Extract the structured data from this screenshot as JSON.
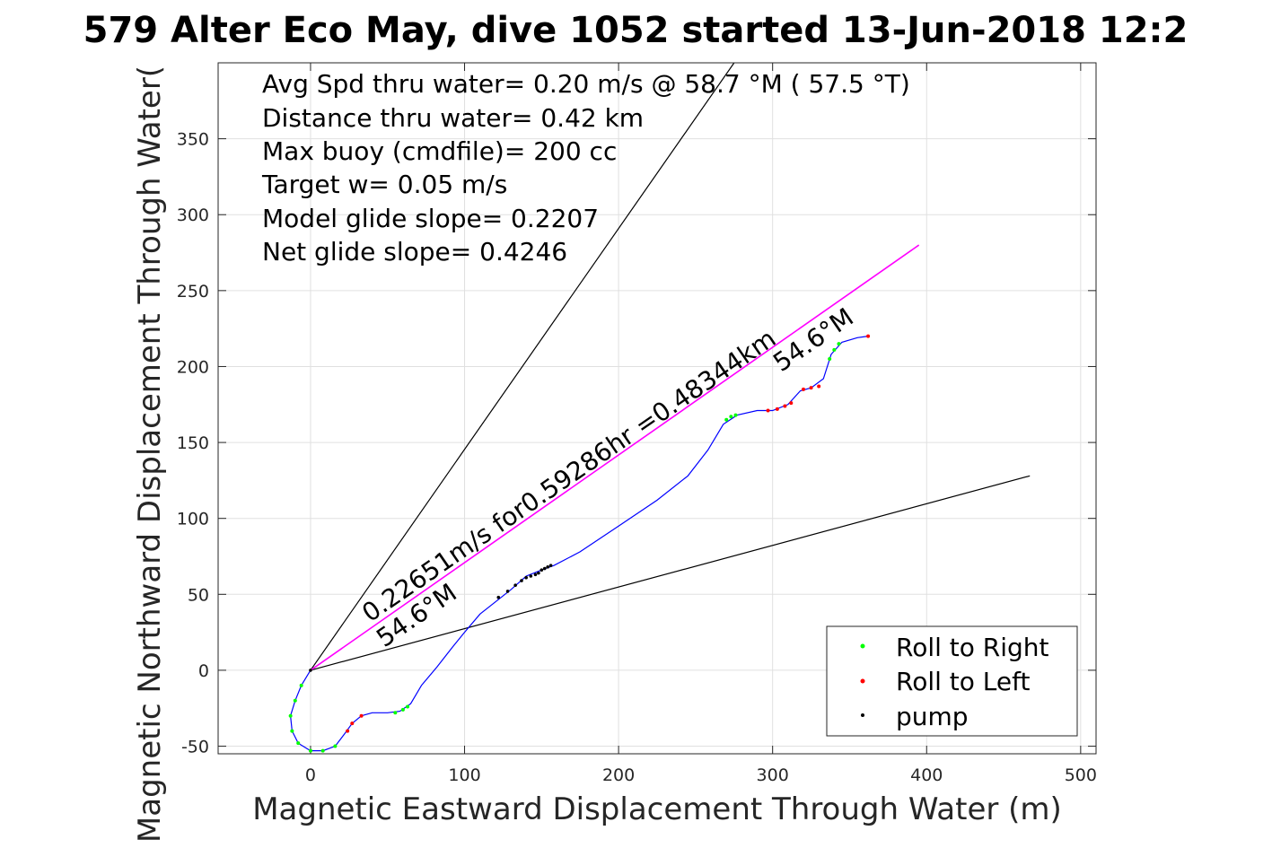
{
  "chart_data": {
    "type": "line",
    "title": "579 Alter Eco May, dive 1052 started 13-Jun-2018 12:2",
    "xlabel": "Magnetic Eastward Displacement Through Water (m)",
    "ylabel": "Magnetic Northward Displacement Through Water(",
    "xlim": [
      -60,
      510
    ],
    "ylim": [
      -55,
      400
    ],
    "xticks": [
      0,
      100,
      200,
      300,
      400,
      500
    ],
    "yticks": [
      -50,
      0,
      50,
      100,
      150,
      200,
      250,
      300,
      350
    ],
    "grid": true,
    "legend_position": "bottom-right",
    "info_lines": [
      "Avg Spd thru water=  0.20 m/s @  58.7 °M ( 57.5 °T)",
      "Distance thru water=  0.42 km",
      "Max buoy (cmdfile)= 200 cc",
      "Target w= 0.05 m/s",
      "Model glide slope= 0.2207",
      "Net glide slope= 0.4246"
    ],
    "annotations": {
      "speed_label": "0.22651m/s for0.59286hr =0.48344km",
      "heading_label_start": "54.6°M",
      "heading_label_end": "54.6°M"
    },
    "colors": {
      "track": "#0000ff",
      "heading_line": "#ff00ff",
      "boundary": "#000000",
      "roll_right": "#00ff00",
      "roll_left": "#ff0000",
      "pump": "#000000"
    },
    "legend": [
      {
        "name": "Roll to Right",
        "color": "#00ff00"
      },
      {
        "name": "Roll to Left",
        "color": "#ff0000"
      },
      {
        "name": "pump",
        "color": "#000000"
      }
    ],
    "lines": {
      "boundary_upper": [
        [
          0,
          0
        ],
        [
          275,
          400
        ]
      ],
      "boundary_lower": [
        [
          0,
          0
        ],
        [
          467,
          128
        ]
      ],
      "heading": [
        [
          0,
          0
        ],
        [
          395,
          280
        ]
      ]
    },
    "series": [
      {
        "name": "track",
        "points": [
          [
            0,
            0
          ],
          [
            -6,
            -10
          ],
          [
            -10,
            -20
          ],
          [
            -13,
            -30
          ],
          [
            -12,
            -40
          ],
          [
            -8,
            -48
          ],
          [
            0,
            -53
          ],
          [
            8,
            -53
          ],
          [
            16,
            -50
          ],
          [
            22,
            -42
          ],
          [
            27,
            -35
          ],
          [
            33,
            -30
          ],
          [
            40,
            -28
          ],
          [
            50,
            -28
          ],
          [
            58,
            -27
          ],
          [
            65,
            -22
          ],
          [
            72,
            -10
          ],
          [
            82,
            2
          ],
          [
            92,
            15
          ],
          [
            100,
            25
          ],
          [
            110,
            37
          ],
          [
            120,
            45
          ],
          [
            130,
            53
          ],
          [
            140,
            62
          ],
          [
            150,
            66
          ],
          [
            158,
            69
          ],
          [
            175,
            78
          ],
          [
            200,
            95
          ],
          [
            225,
            112
          ],
          [
            245,
            128
          ],
          [
            258,
            145
          ],
          [
            268,
            162
          ],
          [
            277,
            168
          ],
          [
            290,
            171
          ],
          [
            300,
            171
          ],
          [
            310,
            175
          ],
          [
            318,
            184
          ],
          [
            325,
            186
          ],
          [
            333,
            192
          ],
          [
            338,
            208
          ],
          [
            345,
            216
          ],
          [
            355,
            219
          ],
          [
            362,
            220
          ]
        ]
      }
    ],
    "roll_right": [
      [
        -6,
        -10
      ],
      [
        -10,
        -20
      ],
      [
        -13,
        -30
      ],
      [
        -12,
        -40
      ],
      [
        -8,
        -48
      ],
      [
        0,
        -53
      ],
      [
        8,
        -53
      ],
      [
        16,
        -50
      ],
      [
        55,
        -28
      ],
      [
        60,
        -26
      ],
      [
        63,
        -24
      ],
      [
        270,
        165
      ],
      [
        273,
        167
      ],
      [
        276,
        168
      ],
      [
        337,
        205
      ],
      [
        340,
        211
      ],
      [
        343,
        215
      ]
    ],
    "roll_left": [
      [
        24,
        -40
      ],
      [
        27,
        -35
      ],
      [
        33,
        -30
      ],
      [
        297,
        171
      ],
      [
        303,
        172
      ],
      [
        308,
        174
      ],
      [
        312,
        176
      ],
      [
        320,
        185
      ],
      [
        325,
        186
      ],
      [
        330,
        187
      ],
      [
        362,
        220
      ]
    ],
    "pump": [
      [
        0,
        0
      ],
      [
        122,
        48
      ],
      [
        128,
        52
      ],
      [
        133,
        56
      ],
      [
        137,
        59
      ],
      [
        140,
        61
      ],
      [
        143,
        62
      ],
      [
        146,
        63
      ],
      [
        148,
        64
      ],
      [
        150,
        66
      ],
      [
        152,
        67
      ],
      [
        154,
        68
      ],
      [
        156,
        69
      ]
    ]
  }
}
